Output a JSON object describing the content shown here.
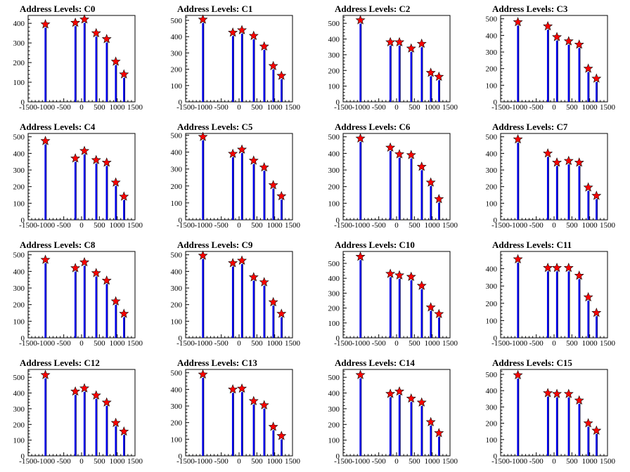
{
  "figure": {
    "title_prefix": "Address Levels: "
  },
  "chart_data": [
    {
      "type": "bar",
      "title": "Address Levels: C0",
      "xlim": [
        -1500,
        1500
      ],
      "ylim": [
        0,
        440
      ],
      "yticks": [
        0,
        100,
        200,
        300,
        400
      ],
      "xtick_labels": [
        "-1500",
        "-1000",
        "-500",
        "0",
        "500",
        "1000",
        "1500"
      ],
      "peaks": [
        {
          "x": -1015,
          "y": 395
        },
        {
          "x": -175,
          "y": 403
        },
        {
          "x": 80,
          "y": 420
        },
        {
          "x": 410,
          "y": 350
        },
        {
          "x": 705,
          "y": 320
        },
        {
          "x": 960,
          "y": 205
        },
        {
          "x": 1190,
          "y": 140
        }
      ]
    },
    {
      "type": "bar",
      "title": "Address Levels: C1",
      "xlim": [
        -1500,
        1500
      ],
      "ylim": [
        0,
        530
      ],
      "yticks": [
        0,
        100,
        200,
        300,
        400,
        500
      ],
      "xtick_labels": [
        "-1500",
        "-1000",
        "-500",
        "0",
        "500",
        "1000",
        "1500"
      ],
      "peaks": [
        {
          "x": -1015,
          "y": 505
        },
        {
          "x": -175,
          "y": 425
        },
        {
          "x": 80,
          "y": 440
        },
        {
          "x": 410,
          "y": 405
        },
        {
          "x": 705,
          "y": 340
        },
        {
          "x": 960,
          "y": 220
        },
        {
          "x": 1190,
          "y": 160
        }
      ]
    },
    {
      "type": "bar",
      "title": "Address Levels: C2",
      "xlim": [
        -1500,
        1500
      ],
      "ylim": [
        0,
        550
      ],
      "yticks": [
        0,
        100,
        200,
        300,
        400,
        500
      ],
      "xtick_labels": [
        "-1500",
        "-1000",
        "-500",
        "0",
        "500",
        "1000",
        "1500"
      ],
      "peaks": [
        {
          "x": -1015,
          "y": 520
        },
        {
          "x": -175,
          "y": 380
        },
        {
          "x": 80,
          "y": 380
        },
        {
          "x": 410,
          "y": 340
        },
        {
          "x": 705,
          "y": 370
        },
        {
          "x": 960,
          "y": 185
        },
        {
          "x": 1190,
          "y": 160
        }
      ]
    },
    {
      "type": "bar",
      "title": "Address Levels: C3",
      "xlim": [
        -1500,
        1500
      ],
      "ylim": [
        0,
        520
      ],
      "yticks": [
        0,
        100,
        200,
        300,
        400,
        500
      ],
      "xtick_labels": [
        "-1500",
        "-1000",
        "-500",
        "0",
        "500",
        "1000",
        "1500"
      ],
      "peaks": [
        {
          "x": -1015,
          "y": 480
        },
        {
          "x": -175,
          "y": 455
        },
        {
          "x": 80,
          "y": 390
        },
        {
          "x": 410,
          "y": 365
        },
        {
          "x": 705,
          "y": 345
        },
        {
          "x": 960,
          "y": 200
        },
        {
          "x": 1190,
          "y": 140
        }
      ]
    },
    {
      "type": "bar",
      "title": "Address Levels: C4",
      "xlim": [
        -1500,
        1500
      ],
      "ylim": [
        0,
        520
      ],
      "yticks": [
        0,
        100,
        200,
        300,
        400,
        500
      ],
      "xtick_labels": [
        "-1500",
        "-1000",
        "-500",
        "0",
        "500",
        "1000",
        "1500"
      ],
      "peaks": [
        {
          "x": -1015,
          "y": 475
        },
        {
          "x": -175,
          "y": 370
        },
        {
          "x": 80,
          "y": 415
        },
        {
          "x": 410,
          "y": 360
        },
        {
          "x": 705,
          "y": 345
        },
        {
          "x": 960,
          "y": 225
        },
        {
          "x": 1190,
          "y": 140
        }
      ]
    },
    {
      "type": "bar",
      "title": "Address Levels: C5",
      "xlim": [
        -1500,
        1500
      ],
      "ylim": [
        0,
        510
      ],
      "yticks": [
        0,
        100,
        200,
        300,
        400,
        500
      ],
      "xtick_labels": [
        "-1500",
        "-1000",
        "-500",
        "0",
        "500",
        "1000",
        "1500"
      ],
      "peaks": [
        {
          "x": -1015,
          "y": 490
        },
        {
          "x": -175,
          "y": 390
        },
        {
          "x": 80,
          "y": 415
        },
        {
          "x": 410,
          "y": 350
        },
        {
          "x": 705,
          "y": 310
        },
        {
          "x": 960,
          "y": 205
        },
        {
          "x": 1190,
          "y": 140
        }
      ]
    },
    {
      "type": "bar",
      "title": "Address Levels: C6",
      "xlim": [
        -1500,
        1500
      ],
      "ylim": [
        0,
        520
      ],
      "yticks": [
        0,
        100,
        200,
        300,
        400,
        500
      ],
      "xtick_labels": [
        "-1500",
        "-1000",
        "-500",
        "0",
        "500",
        "1000",
        "1500"
      ],
      "peaks": [
        {
          "x": -1015,
          "y": 490
        },
        {
          "x": -175,
          "y": 435
        },
        {
          "x": 80,
          "y": 395
        },
        {
          "x": 410,
          "y": 390
        },
        {
          "x": 705,
          "y": 320
        },
        {
          "x": 960,
          "y": 225
        },
        {
          "x": 1190,
          "y": 125
        }
      ]
    },
    {
      "type": "bar",
      "title": "Address Levels: C7",
      "xlim": [
        -1500,
        1500
      ],
      "ylim": [
        0,
        520
      ],
      "yticks": [
        0,
        100,
        200,
        300,
        400,
        500
      ],
      "xtick_labels": [
        "-1500",
        "-1000",
        "-500",
        "0",
        "500",
        "1000",
        "1500"
      ],
      "peaks": [
        {
          "x": -1015,
          "y": 485
        },
        {
          "x": -175,
          "y": 400
        },
        {
          "x": 80,
          "y": 345
        },
        {
          "x": 410,
          "y": 355
        },
        {
          "x": 705,
          "y": 345
        },
        {
          "x": 960,
          "y": 195
        },
        {
          "x": 1190,
          "y": 145
        }
      ]
    },
    {
      "type": "bar",
      "title": "Address Levels: C8",
      "xlim": [
        -1500,
        1500
      ],
      "ylim": [
        0,
        520
      ],
      "yticks": [
        0,
        100,
        200,
        300,
        400,
        500
      ],
      "xtick_labels": [
        "-1500",
        "-1000",
        "-500",
        "0",
        "500",
        "1000",
        "1500"
      ],
      "peaks": [
        {
          "x": -1015,
          "y": 470
        },
        {
          "x": -175,
          "y": 420
        },
        {
          "x": 80,
          "y": 455
        },
        {
          "x": 410,
          "y": 390
        },
        {
          "x": 705,
          "y": 345
        },
        {
          "x": 960,
          "y": 220
        },
        {
          "x": 1190,
          "y": 145
        }
      ]
    },
    {
      "type": "bar",
      "title": "Address Levels: C9",
      "xlim": [
        -1500,
        1500
      ],
      "ylim": [
        0,
        520
      ],
      "yticks": [
        0,
        100,
        200,
        300,
        400,
        500
      ],
      "xtick_labels": [
        "-1500",
        "-1000",
        "-500",
        "0",
        "500",
        "1000",
        "1500"
      ],
      "peaks": [
        {
          "x": -1015,
          "y": 495
        },
        {
          "x": -175,
          "y": 450
        },
        {
          "x": 80,
          "y": 465
        },
        {
          "x": 410,
          "y": 365
        },
        {
          "x": 705,
          "y": 335
        },
        {
          "x": 960,
          "y": 215
        },
        {
          "x": 1190,
          "y": 145
        }
      ]
    },
    {
      "type": "bar",
      "title": "Address Levels: C10",
      "xlim": [
        -1500,
        1500
      ],
      "ylim": [
        0,
        580
      ],
      "yticks": [
        0,
        100,
        200,
        300,
        400,
        500
      ],
      "xtick_labels": [
        "-1500",
        "-1000",
        "-500",
        "0",
        "500",
        "1000",
        "1500"
      ],
      "peaks": [
        {
          "x": -1015,
          "y": 545
        },
        {
          "x": -175,
          "y": 430
        },
        {
          "x": 80,
          "y": 420
        },
        {
          "x": 410,
          "y": 410
        },
        {
          "x": 705,
          "y": 350
        },
        {
          "x": 960,
          "y": 205
        },
        {
          "x": 1190,
          "y": 160
        }
      ]
    },
    {
      "type": "bar",
      "title": "Address Levels: C11",
      "xlim": [
        -1500,
        1500
      ],
      "ylim": [
        0,
        500
      ],
      "yticks": [
        0,
        100,
        200,
        300,
        400
      ],
      "xtick_labels": [
        "-1500",
        "-1000",
        "-500",
        "0",
        "500",
        "1000",
        "1500"
      ],
      "peaks": [
        {
          "x": -1015,
          "y": 455
        },
        {
          "x": -175,
          "y": 405
        },
        {
          "x": 80,
          "y": 405
        },
        {
          "x": 410,
          "y": 405
        },
        {
          "x": 705,
          "y": 360
        },
        {
          "x": 960,
          "y": 235
        },
        {
          "x": 1190,
          "y": 145
        }
      ]
    },
    {
      "type": "bar",
      "title": "Address Levels: C12",
      "xlim": [
        -1500,
        1500
      ],
      "ylim": [
        0,
        550
      ],
      "yticks": [
        0,
        100,
        200,
        300,
        400,
        500
      ],
      "xtick_labels": [
        "-1500",
        "-1000",
        "-500",
        "0",
        "500",
        "1000",
        "1500"
      ],
      "peaks": [
        {
          "x": -1015,
          "y": 515
        },
        {
          "x": -175,
          "y": 410
        },
        {
          "x": 80,
          "y": 430
        },
        {
          "x": 410,
          "y": 385
        },
        {
          "x": 705,
          "y": 340
        },
        {
          "x": 960,
          "y": 210
        },
        {
          "x": 1190,
          "y": 155
        }
      ]
    },
    {
      "type": "bar",
      "title": "Address Levels: C13",
      "xlim": [
        -1500,
        1500
      ],
      "ylim": [
        0,
        520
      ],
      "yticks": [
        0,
        100,
        200,
        300,
        400,
        500
      ],
      "xtick_labels": [
        "-1500",
        "-1000",
        "-500",
        "0",
        "500",
        "1000",
        "1500"
      ],
      "peaks": [
        {
          "x": -1015,
          "y": 490
        },
        {
          "x": -175,
          "y": 400
        },
        {
          "x": 80,
          "y": 405
        },
        {
          "x": 410,
          "y": 330
        },
        {
          "x": 705,
          "y": 305
        },
        {
          "x": 960,
          "y": 175
        },
        {
          "x": 1190,
          "y": 120
        }
      ]
    },
    {
      "type": "bar",
      "title": "Address Levels: C14",
      "xlim": [
        -1500,
        1500
      ],
      "ylim": [
        0,
        550
      ],
      "yticks": [
        0,
        100,
        200,
        300,
        400,
        500
      ],
      "xtick_labels": [
        "-1500",
        "-1000",
        "-500",
        "0",
        "500",
        "1000",
        "1500"
      ],
      "peaks": [
        {
          "x": -1015,
          "y": 515
        },
        {
          "x": -175,
          "y": 395
        },
        {
          "x": 80,
          "y": 410
        },
        {
          "x": 410,
          "y": 365
        },
        {
          "x": 705,
          "y": 340
        },
        {
          "x": 960,
          "y": 215
        },
        {
          "x": 1190,
          "y": 145
        }
      ]
    },
    {
      "type": "bar",
      "title": "Address Levels: C15",
      "xlim": [
        -1500,
        1500
      ],
      "ylim": [
        0,
        530
      ],
      "yticks": [
        0,
        100,
        200,
        300,
        400,
        500
      ],
      "xtick_labels": [
        "-1500",
        "-1000",
        "-500",
        "0",
        "500",
        "1000",
        "1500"
      ],
      "peaks": [
        {
          "x": -1015,
          "y": 495
        },
        {
          "x": -175,
          "y": 385
        },
        {
          "x": 80,
          "y": 380
        },
        {
          "x": 410,
          "y": 380
        },
        {
          "x": 705,
          "y": 340
        },
        {
          "x": 960,
          "y": 200
        },
        {
          "x": 1190,
          "y": 155
        }
      ]
    }
  ]
}
